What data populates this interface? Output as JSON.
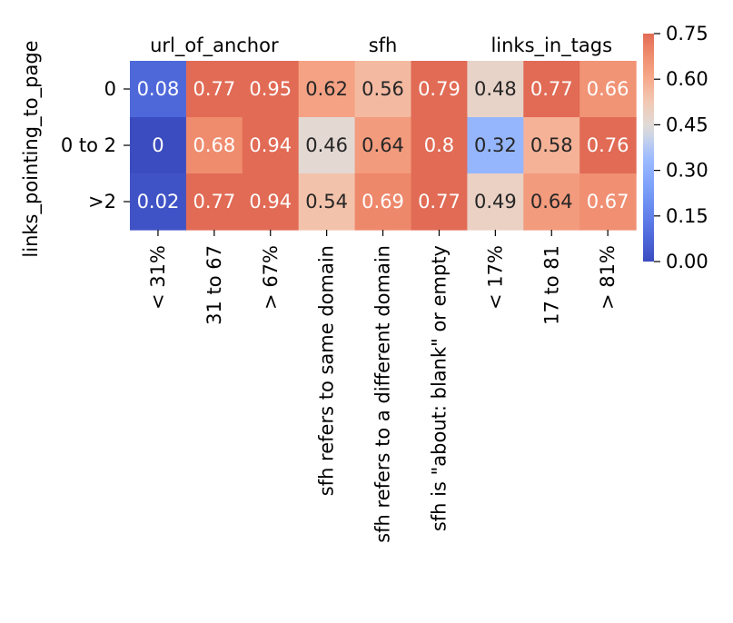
{
  "chart_data": {
    "type": "heatmap",
    "title": "",
    "ylabel": "links_pointing_to_page",
    "group_labels": [
      "url_of_anchor",
      "sfh",
      "links_in_tags"
    ],
    "rows": [
      "0",
      "0 to 2",
      ">2"
    ],
    "columns": [
      "< 31%",
      "31 to 67",
      "> 67%",
      "sfh refers to same domain",
      "sfh refers to a different domain",
      "sfh is \"about: blank\" or empty",
      "< 17%",
      "17 to 81",
      "> 81%"
    ],
    "values": [
      [
        0.08,
        0.77,
        0.95,
        0.62,
        0.56,
        0.79,
        0.48,
        0.77,
        0.66
      ],
      [
        0,
        0.68,
        0.94,
        0.46,
        0.64,
        0.8,
        0.32,
        0.58,
        0.76
      ],
      [
        0.02,
        0.77,
        0.94,
        0.54,
        0.69,
        0.77,
        0.49,
        0.64,
        0.67
      ]
    ],
    "colorbar": {
      "colormap": "coolwarm",
      "range": [
        0,
        0.75
      ],
      "ticks": [
        "0.00",
        "0.15",
        "0.30",
        "0.45",
        "0.60",
        "0.75"
      ]
    }
  }
}
